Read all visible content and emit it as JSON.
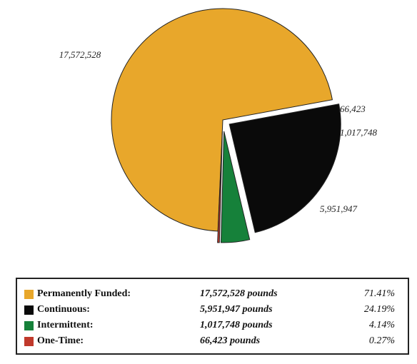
{
  "chart_data": {
    "type": "pie",
    "title": "",
    "slices": [
      {
        "label": "Permanently Funded",
        "value": 17572528,
        "display": "17,572,528",
        "color": "#E8A72B"
      },
      {
        "label": "Continuous",
        "value": 5951947,
        "display": "5,951,947",
        "color": "#0A0A0A"
      },
      {
        "label": "Intermittent",
        "value": 1017748,
        "display": "1,017,748",
        "color": "#16813A"
      },
      {
        "label": "One-Time",
        "value": 66423,
        "display": "66,423",
        "color": "#C0392B"
      }
    ]
  },
  "legend": {
    "rows": [
      {
        "name": "Permanently Funded:",
        "amount": "17,572,528 pounds",
        "percent": "71.41%",
        "color": "#E8A72B"
      },
      {
        "name": "Continuous:",
        "amount": "5,951,947 pounds",
        "percent": "24.19%",
        "color": "#0A0A0A"
      },
      {
        "name": "Intermittent:",
        "amount": "1,017,748 pounds",
        "percent": "4.14%",
        "color": "#16813A"
      },
      {
        "name": "One-Time:",
        "amount": "66,423 pounds",
        "percent": "0.27%",
        "color": "#C0392B"
      }
    ]
  }
}
